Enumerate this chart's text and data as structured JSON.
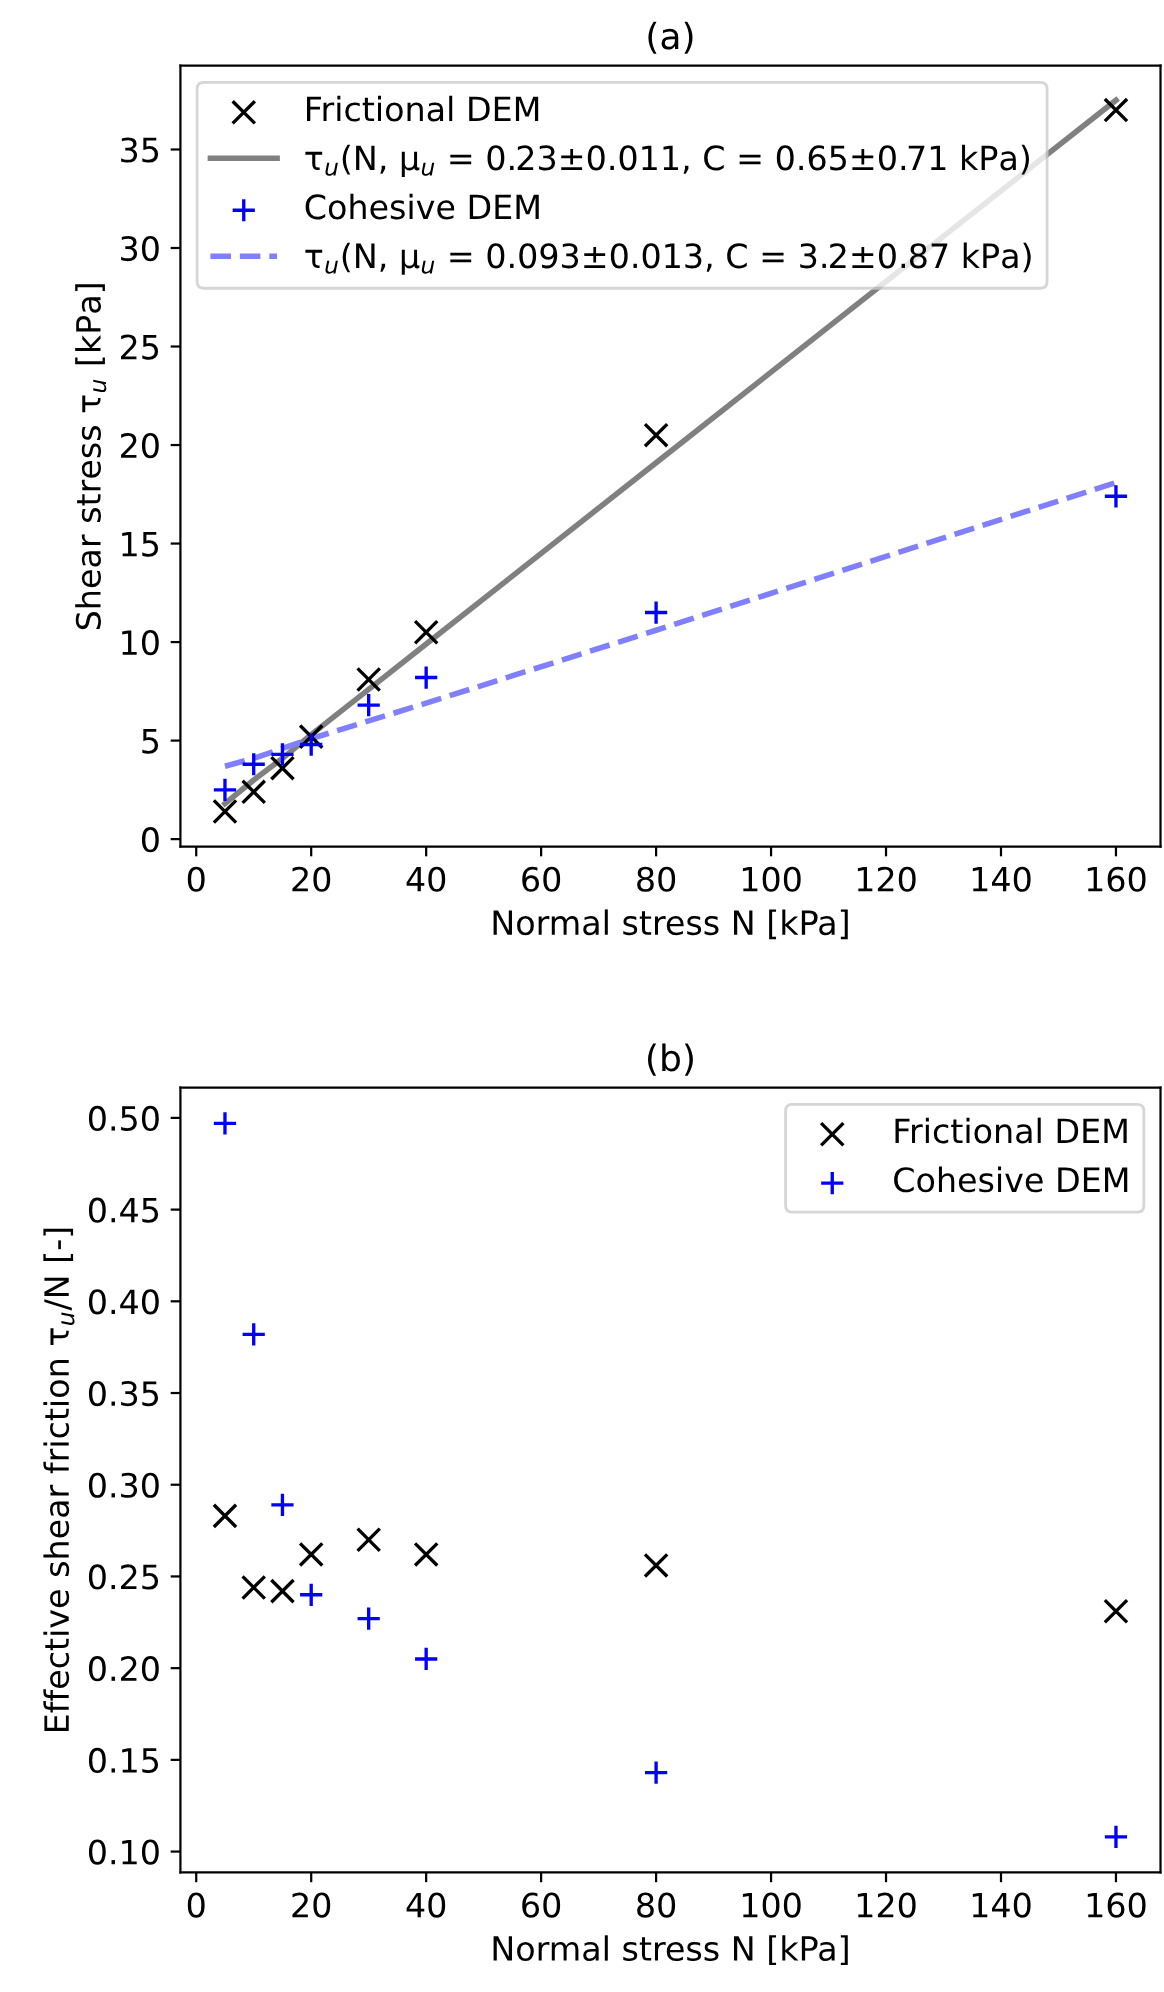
{
  "chart_data": [
    {
      "type": "scatter",
      "title": "(a)",
      "xlabel": "Normal stress N [kPa]",
      "ylabel": "Shear stress τ$_{u}$ [kPa]",
      "x": [
        5,
        10,
        15,
        20,
        30,
        40,
        80,
        160
      ],
      "series": [
        {
          "name": "Frictional DEM",
          "color": "#000000",
          "marker": "cross",
          "values": [
            1.4,
            2.4,
            3.6,
            5.2,
            8.1,
            10.5,
            20.5,
            37.0
          ]
        },
        {
          "name": "τ$_{u}$(N, μ$_{u}$ = 0.23±0.011, C = 0.65±0.71 kPa)",
          "type": "line",
          "color": "#808080",
          "line_style": "solid",
          "marker": "none",
          "values": [
            1.8,
            3.0,
            4.1,
            5.3,
            7.6,
            9.9,
            19.1,
            37.5
          ]
        },
        {
          "name": "Cohesive DEM",
          "color": "#0000ff",
          "marker": "plus",
          "values": [
            2.5,
            3.8,
            4.3,
            4.8,
            6.8,
            8.2,
            11.5,
            17.4
          ]
        },
        {
          "name": "τ$_{u}$(N, μ$_{u}$ = 0.093±0.013, C = 3.2±0.87 kPa)",
          "type": "line",
          "color": "#8080ff",
          "line_style": "dashed",
          "marker": "none",
          "values": [
            3.7,
            4.1,
            4.6,
            5.1,
            6.0,
            6.9,
            10.6,
            18.1
          ]
        }
      ],
      "xlim": [
        -2.75,
        167.75
      ],
      "xticks": [
        0,
        20,
        40,
        60,
        80,
        100,
        120,
        140,
        160
      ],
      "ylim": [
        -0.38,
        39.25
      ],
      "yticks": [
        0,
        5,
        10,
        15,
        20,
        25,
        30,
        35
      ],
      "grid": false,
      "legend": "top left"
    },
    {
      "type": "scatter",
      "title": "(b)",
      "xlabel": "Normal stress N [kPa]",
      "ylabel": "Effective shear friction τ$_{u}$/N [-]",
      "x": [
        5,
        10,
        15,
        20,
        30,
        40,
        80,
        160
      ],
      "series": [
        {
          "name": "Frictional DEM",
          "color": "#000000",
          "marker": "cross",
          "values": [
            0.283,
            0.244,
            0.242,
            0.262,
            0.27,
            0.262,
            0.256,
            0.231
          ]
        },
        {
          "name": "Cohesive DEM",
          "color": "#0000ff",
          "marker": "plus",
          "values": [
            0.497,
            0.382,
            0.289,
            0.24,
            0.227,
            0.205,
            0.143,
            0.108
          ]
        }
      ],
      "xlim": [
        -2.75,
        167.75
      ],
      "xticks": [
        0,
        20,
        40,
        60,
        80,
        100,
        120,
        140,
        160
      ],
      "ylim": [
        0.0886,
        0.5165
      ],
      "yticks": [
        {
          "value": 0.1,
          "label": "0.10"
        },
        {
          "value": 0.15,
          "label": "0.15"
        },
        {
          "value": 0.2,
          "label": "0.20"
        },
        {
          "value": 0.25,
          "label": "0.25"
        },
        {
          "value": 0.3,
          "label": "0.30"
        },
        {
          "value": 0.35,
          "label": "0.35"
        },
        {
          "value": 0.4,
          "label": "0.40"
        },
        {
          "value": 0.45,
          "label": "0.45"
        },
        {
          "value": 0.5,
          "label": "0.50"
        }
      ],
      "grid": false,
      "legend": "top right"
    }
  ]
}
